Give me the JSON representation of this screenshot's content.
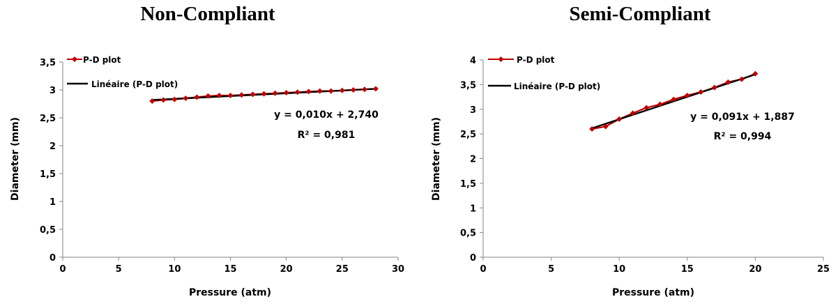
{
  "chart_data": [
    {
      "type": "line",
      "title": "Non-Compliant",
      "xlabel": "Pressure (atm)",
      "ylabel": "Diameter (mm)",
      "xlim": [
        0,
        30
      ],
      "ylim": [
        0,
        3.5
      ],
      "xticks": [
        "0",
        "5",
        "10",
        "15",
        "20",
        "25",
        "30"
      ],
      "yticks": [
        "0",
        "0,5",
        "1",
        "1,5",
        "2",
        "2,5",
        "3",
        "3,5"
      ],
      "grid": false,
      "legend_position": "top-left",
      "series": [
        {
          "name": "P-D plot",
          "color": "#c00000",
          "marker": "diamond",
          "x": [
            8,
            9,
            10,
            11,
            12,
            13,
            14,
            15,
            16,
            17,
            18,
            19,
            20,
            21,
            22,
            23,
            24,
            25,
            26,
            27,
            28
          ],
          "y": [
            2.8,
            2.82,
            2.83,
            2.85,
            2.87,
            2.89,
            2.9,
            2.9,
            2.91,
            2.92,
            2.93,
            2.94,
            2.95,
            2.96,
            2.97,
            2.98,
            2.98,
            2.99,
            3.0,
            3.01,
            3.02
          ]
        },
        {
          "name": "Linéaire (P-D plot)",
          "color": "#000000",
          "trendline": true,
          "slope": 0.01,
          "intercept": 2.74,
          "x_range": [
            8,
            28
          ]
        }
      ],
      "equation": "y = 0,010x + 2,740",
      "r_squared": "R² = 0,981"
    },
    {
      "type": "line",
      "title": "Semi-Compliant",
      "xlabel": "Pressure (atm)",
      "ylabel": "Diameter (mm)",
      "xlim": [
        0,
        25
      ],
      "ylim": [
        0,
        4
      ],
      "xticks": [
        "0",
        "5",
        "10",
        "15",
        "20",
        "25"
      ],
      "yticks": [
        "0",
        "0,5",
        "1",
        "1,5",
        "2",
        "2,5",
        "3",
        "3,5",
        "4"
      ],
      "grid": false,
      "legend_position": "top-left",
      "series": [
        {
          "name": "P-D plot",
          "color": "#c00000",
          "marker": "diamond",
          "x": [
            8,
            9,
            10,
            11,
            12,
            13,
            14,
            15,
            16,
            17,
            18,
            19,
            20
          ],
          "y": [
            2.6,
            2.65,
            2.8,
            2.92,
            3.03,
            3.1,
            3.2,
            3.28,
            3.35,
            3.44,
            3.55,
            3.61,
            3.72
          ]
        },
        {
          "name": "Linéaire (P-D plot)",
          "color": "#000000",
          "trendline": true,
          "slope": 0.091,
          "intercept": 1.887,
          "x_range": [
            8,
            20
          ]
        }
      ],
      "equation": "y = 0,091x + 1,887",
      "r_squared": "R² = 0,994"
    }
  ]
}
